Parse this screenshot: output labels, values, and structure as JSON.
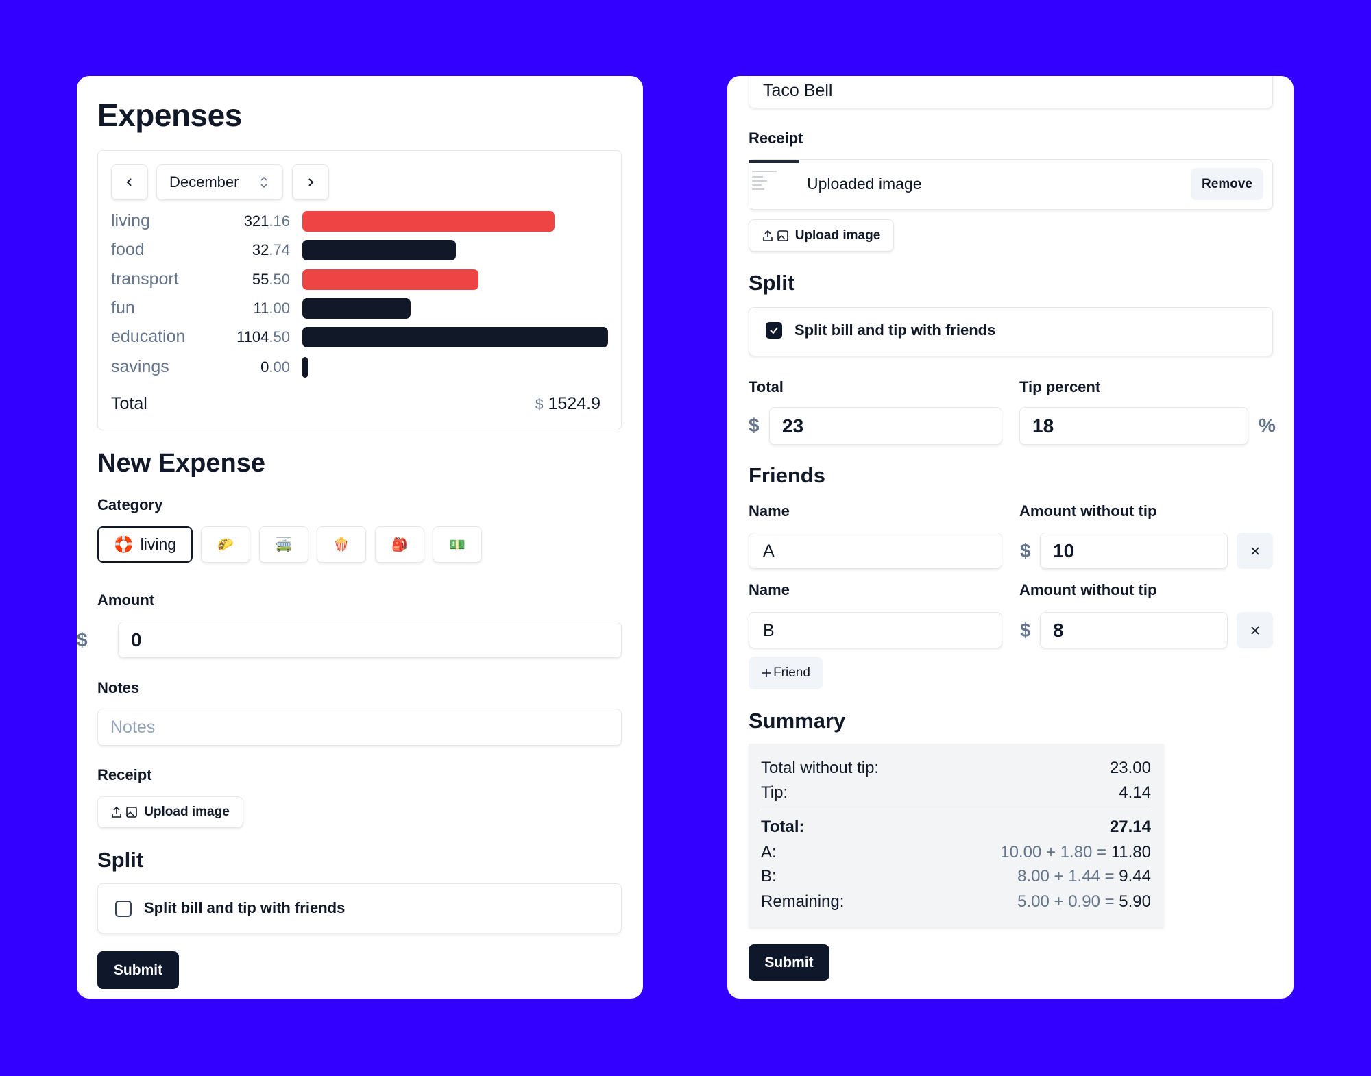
{
  "expenses": {
    "title": "Expenses",
    "month": "December",
    "rows": [
      {
        "category": "living",
        "amount": "321.16",
        "color": "#ef4444"
      },
      {
        "category": "food",
        "amount": "32.74",
        "color": "#111827"
      },
      {
        "category": "transport",
        "amount": "55.50",
        "color": "#ef4444"
      },
      {
        "category": "fun",
        "amount": "11.00",
        "color": "#111827"
      },
      {
        "category": "education",
        "amount": "1104.50",
        "color": "#111827"
      },
      {
        "category": "savings",
        "amount": "0.00",
        "color": "#111827"
      }
    ],
    "total_label": "Total",
    "total_currency": "$",
    "total": "1524.9"
  },
  "new_expense": {
    "title": "New Expense",
    "category_label": "Category",
    "categories": [
      "🛟",
      "🌮",
      "🚎",
      "🍿",
      "🎒",
      "💵"
    ],
    "selected_category": "living",
    "amount_label": "Amount",
    "currency": "$",
    "amount": "0",
    "notes_label": "Notes",
    "notes_placeholder": "Notes",
    "receipt_label": "Receipt",
    "upload": "Upload image",
    "split_title": "Split",
    "split_checkbox": "Split bill and tip with friends",
    "submit": "Submit"
  },
  "split_expense": {
    "name": "Taco Bell",
    "receipt_label": "Receipt",
    "uploaded": "Uploaded image",
    "remove": "Remove",
    "upload": "Upload image",
    "split_title": "Split",
    "split_checkbox": "Split bill and tip with friends",
    "total_label": "Total",
    "currency": "$",
    "total": "23",
    "tip_label": "Tip percent",
    "tip": "18",
    "percent": "%",
    "friends_title": "Friends",
    "friends": [
      {
        "name_label": "Name",
        "name": "A",
        "amount_label": "Amount without tip",
        "amount": "10"
      },
      {
        "name_label": "Name",
        "name": "B",
        "amount_label": "Amount without tip",
        "amount": "8"
      }
    ],
    "add_friend": "Friend",
    "summary_title": "Summary",
    "summary": [
      {
        "label": "Total without tip:",
        "value": "23.00"
      },
      {
        "label": "Tip:",
        "value": "4.14"
      },
      {
        "label": "Total:",
        "value": "27.14",
        "bold": true,
        "separator_before": true
      },
      {
        "label": "A:",
        "detail": "10.00 + 1.80 =",
        "value": "11.80"
      },
      {
        "label": "B:",
        "detail": "8.00 + 1.44 =",
        "value": "9.44"
      },
      {
        "label": "Remaining:",
        "detail": "5.00 + 0.90 =",
        "value": "5.90"
      }
    ],
    "submit": "Submit"
  }
}
